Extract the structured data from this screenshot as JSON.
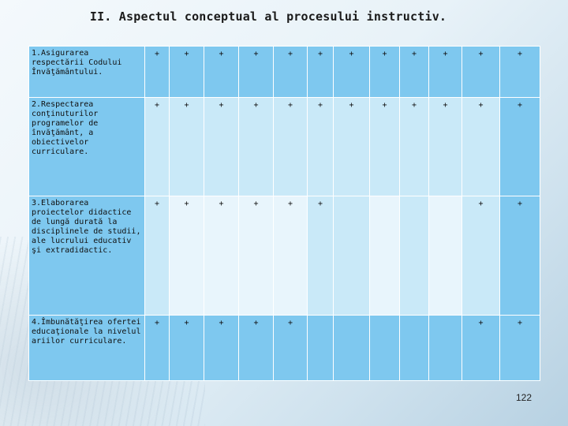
{
  "title": "II. Aspectul conceptual al procesului instructiv.",
  "rows": [
    {
      "label": "1.Asigurarea respectării Codului Învăţământului.",
      "marks": [
        "+",
        "+",
        "+",
        "+",
        "+",
        "+",
        "+",
        "+",
        "+",
        "+",
        "+",
        "+"
      ]
    },
    {
      "label": "2.Respectarea conţinuturilor programelor de învăţământ, a obiectivelor curriculare.",
      "marks": [
        "+",
        "+",
        "+",
        "+",
        "+",
        "+",
        "+",
        "+",
        "+",
        "+",
        "+",
        "+"
      ]
    },
    {
      "label": "3.Elaborarea proiectelor didactice de lungă durată la disciplinele de studii, ale lucrului educativ şi extradidactic.",
      "marks": [
        "+",
        "+",
        "+",
        "+",
        "+",
        "+",
        "",
        "",
        "",
        "",
        "+",
        "+"
      ]
    },
    {
      "label": "4.Îmbunătăţirea ofertei educaţionale la nivelul ariilor curriculare.",
      "marks": [
        "+",
        "+",
        "+",
        "+",
        "+",
        "",
        "",
        "",
        "",
        "",
        "+",
        "+"
      ]
    }
  ],
  "page_number": "122"
}
